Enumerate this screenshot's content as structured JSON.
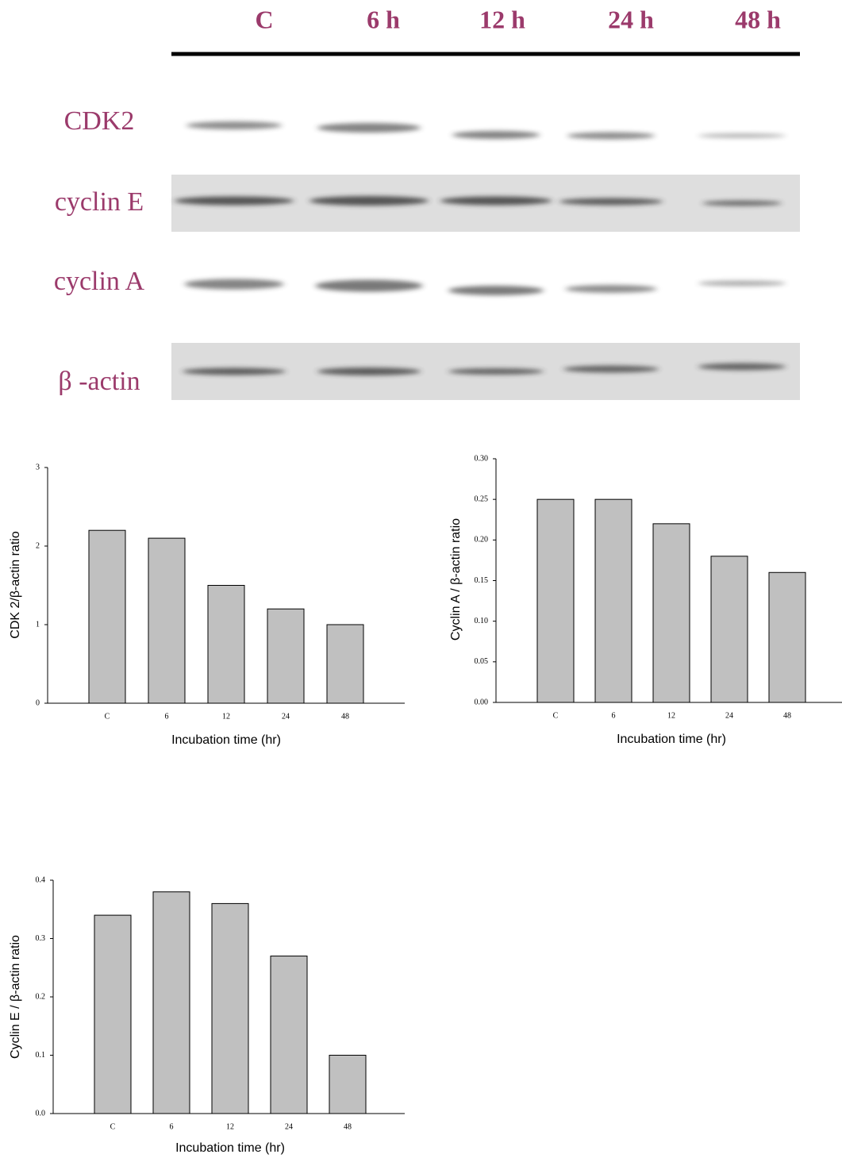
{
  "blot": {
    "lanes": [
      "C",
      "6 h",
      "12 h",
      "24 h",
      "48 h"
    ],
    "rows": [
      "CDK2",
      "cyclin E",
      "cyclin A",
      "β -actin"
    ]
  },
  "chart_data": [
    {
      "type": "bar",
      "ylabel": "CDK 2/β-actin ratio",
      "xlabel": "Incubation time (hr)",
      "categories": [
        "C",
        "6",
        "12",
        "24",
        "48"
      ],
      "values": [
        2.2,
        2.1,
        1.5,
        1.2,
        1.0
      ],
      "color": "#c0c0c0",
      "ylim": [
        0,
        3
      ],
      "yticks": [
        0,
        1,
        2,
        3
      ]
    },
    {
      "type": "bar",
      "ylabel": "Cyclin A / β-actin ratio",
      "xlabel": "Incubation time (hr)",
      "categories": [
        "C",
        "6",
        "12",
        "24",
        "48"
      ],
      "values": [
        0.25,
        0.25,
        0.22,
        0.18,
        0.16
      ],
      "color": "#c0c0c0",
      "ylim": [
        0,
        0.3
      ],
      "yticks": [
        {
          "value": 0,
          "label": "0.00"
        },
        0.05,
        {
          "value": 0.1,
          "label": "0.10"
        },
        0.15,
        {
          "value": 0.2,
          "label": "0.20"
        },
        0.25,
        {
          "value": 0.3,
          "label": "0.30"
        }
      ]
    },
    {
      "type": "bar",
      "ylabel": "Cyclin E / β-actin ratio",
      "xlabel": "Incubation time (hr)",
      "categories": [
        "C",
        "6",
        "12",
        "24",
        "48"
      ],
      "values": [
        0.34,
        0.38,
        0.36,
        0.27,
        0.1
      ],
      "color": "#c0c0c0",
      "ylim": [
        0,
        0.4
      ],
      "yticks": [
        {
          "value": 0,
          "label": "0.0"
        },
        0.1,
        0.2,
        0.3,
        0.4
      ]
    }
  ]
}
